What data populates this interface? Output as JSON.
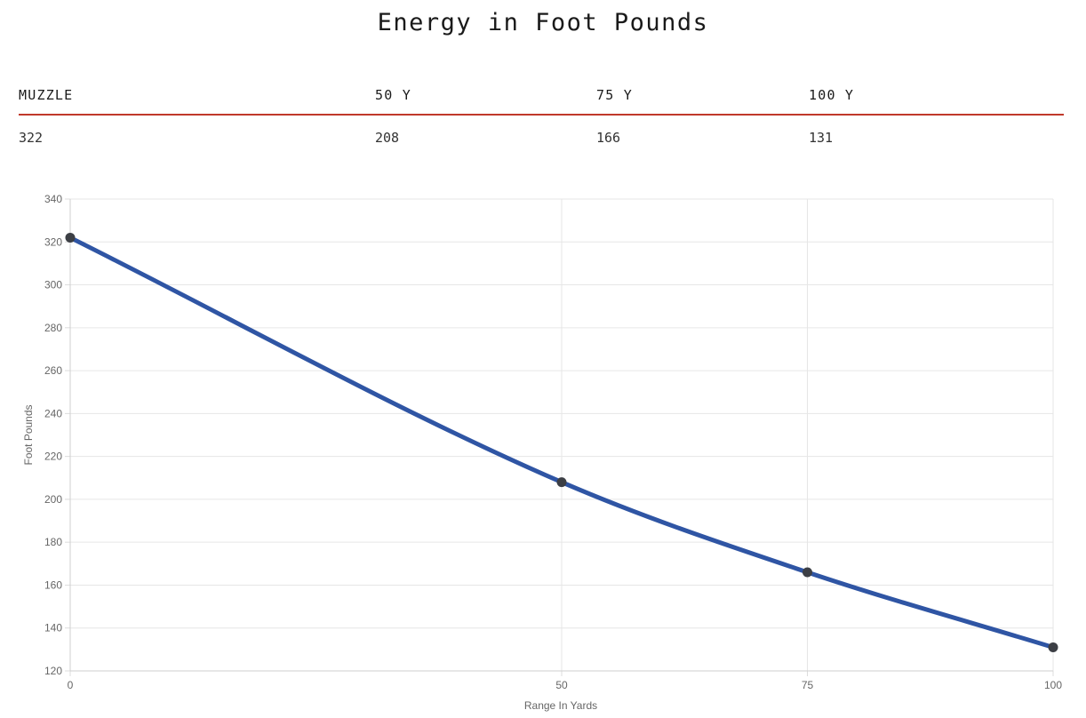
{
  "title": "Energy in Foot Pounds",
  "table": {
    "headers": [
      "MUZZLE",
      "50 Y",
      "75 Y",
      "100 Y"
    ],
    "values": [
      "322",
      "208",
      "166",
      "131"
    ]
  },
  "colors": {
    "line": "#2f55a4",
    "point": "#3c3f45",
    "table_rule": "#c0392b",
    "grid": "#e6e6e6"
  },
  "chart_data": {
    "type": "line",
    "x": [
      0,
      50,
      75,
      100
    ],
    "series": [
      {
        "values": [
          322,
          208,
          166,
          131
        ]
      }
    ],
    "xlabel": "Range In Yards",
    "ylabel": "Foot Pounds",
    "xlim": [
      0,
      100
    ],
    "ylim": [
      120,
      340
    ],
    "yticks": [
      120,
      140,
      160,
      180,
      200,
      220,
      240,
      260,
      280,
      300,
      320,
      340
    ],
    "xticks": [
      0,
      50,
      75,
      100
    ],
    "grid": true,
    "legend": "none"
  }
}
